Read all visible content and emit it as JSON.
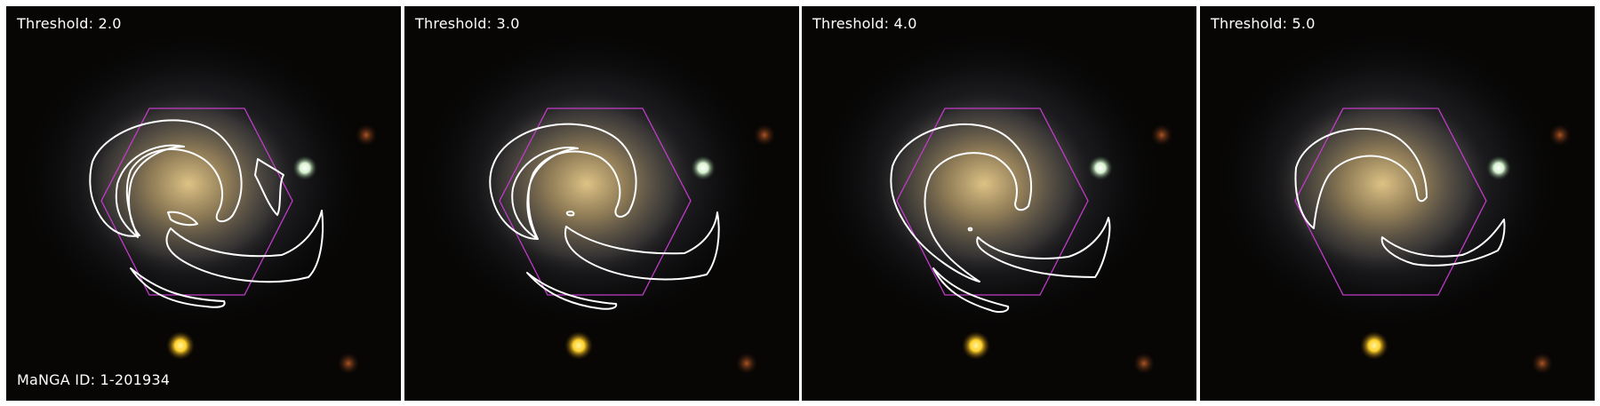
{
  "panels": [
    {
      "threshold_label": "Threshold: 2.0",
      "manga_label": "MaNGA ID: 1-201934"
    },
    {
      "threshold_label": "Threshold: 3.0"
    },
    {
      "threshold_label": "Threshold: 4.0"
    },
    {
      "threshold_label": "Threshold: 5.0"
    }
  ],
  "colors": {
    "background": "#070605",
    "galaxy_core": "#cdb379",
    "galaxy_halo": "#8a8aa8",
    "hexagon": "#c03cc8",
    "contour": "#ffffff",
    "star_green": "#d8f2d0",
    "star_yellow": "#ffd02a"
  }
}
